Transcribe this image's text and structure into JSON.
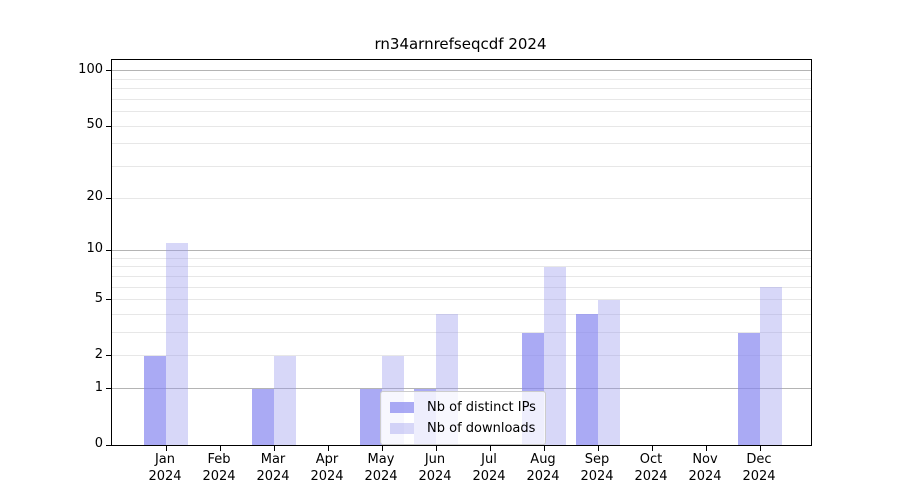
{
  "chart_data": {
    "type": "bar",
    "title": "rn34arnrefseqcdf 2024",
    "categories": [
      {
        "month": "Jan",
        "year": "2024"
      },
      {
        "month": "Feb",
        "year": "2024"
      },
      {
        "month": "Mar",
        "year": "2024"
      },
      {
        "month": "Apr",
        "year": "2024"
      },
      {
        "month": "May",
        "year": "2024"
      },
      {
        "month": "Jun",
        "year": "2024"
      },
      {
        "month": "Jul",
        "year": "2024"
      },
      {
        "month": "Aug",
        "year": "2024"
      },
      {
        "month": "Sep",
        "year": "2024"
      },
      {
        "month": "Oct",
        "year": "2024"
      },
      {
        "month": "Nov",
        "year": "2024"
      },
      {
        "month": "Dec",
        "year": "2024"
      }
    ],
    "series": [
      {
        "name": "Nb of distinct IPs",
        "values": [
          2,
          0,
          1,
          0,
          1,
          1,
          0,
          3,
          4,
          0,
          0,
          3
        ],
        "color": "#aaaaf0",
        "fill": "rgba(135,135,240,0.71)"
      },
      {
        "name": "Nb of downloads",
        "values": [
          11,
          0,
          2,
          0,
          2,
          4,
          0,
          8,
          5,
          0,
          0,
          6
        ],
        "color": "#d7d7f8",
        "fill": "rgba(150,150,237,0.38)"
      }
    ],
    "yscale": "log1p",
    "ylim": [
      0,
      113
    ],
    "ytick_labels": [
      "100",
      "50",
      "20",
      "10",
      "5",
      "2",
      "1",
      "0"
    ],
    "ytick_values": [
      100,
      50,
      20,
      10,
      5,
      2,
      1,
      0
    ],
    "major_gridlines": [
      1,
      10,
      100
    ],
    "minor_gridlines": [
      2,
      3,
      4,
      5,
      6,
      7,
      8,
      9,
      20,
      30,
      40,
      50,
      60,
      70,
      80,
      90
    ],
    "grid": true,
    "legend": {
      "position": "lower-center-inside",
      "items": [
        "Nb of distinct IPs",
        "Nb of downloads"
      ]
    }
  },
  "colors": {
    "background": "#ffffff",
    "spine": "#000000",
    "grid_major": "#b4b4b4",
    "grid_minor": "#e7e7e7",
    "text": "#000000",
    "legend_border": "#cccccc",
    "legend_background": "rgba(255,255,255,0.8)"
  }
}
